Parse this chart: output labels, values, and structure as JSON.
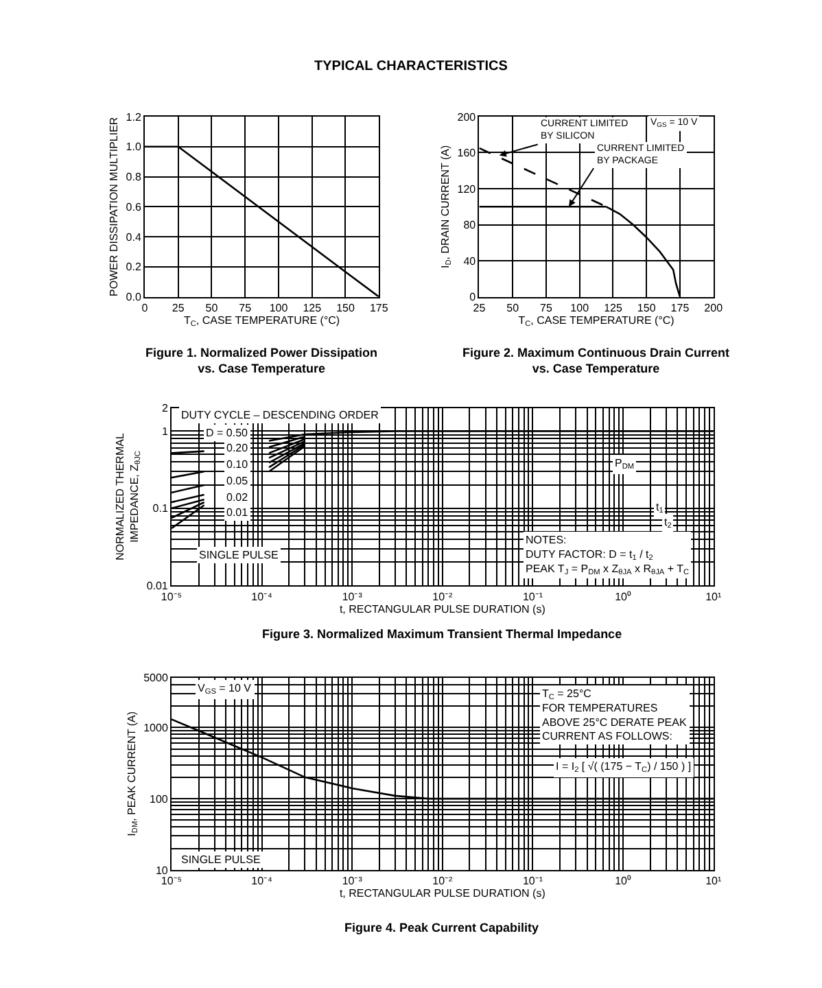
{
  "chart_data": [
    {
      "type": "line",
      "title": "Figure 1. Normalized Power Dissipation\nvs. Case Temperature",
      "xlabel": "T$_{C}$, CASE TEMPERATURE (°C)",
      "ylabel": "POWER DISSIPATION MULTIPLIER",
      "annotations": [
        "TYPICAL CHARACTERISTICS"
      ],
      "xlim": [
        0,
        175
      ],
      "ylim": [
        0,
        1.2
      ],
      "xticks": [
        0,
        25,
        50,
        75,
        100,
        125,
        150,
        175
      ],
      "yticks": [
        {
          "value": 0,
          "label": "0.0"
        },
        {
          "value": 0.2,
          "label": "0.2"
        },
        {
          "value": 0.4,
          "label": "0.4"
        },
        {
          "value": 0.6,
          "label": "0.6"
        },
        {
          "value": 0.8,
          "label": "0.8"
        },
        {
          "value": 1.0,
          "label": "1.0"
        },
        {
          "value": 1.2,
          "label": "1.2"
        }
      ],
      "grid": true,
      "line_style": "solid",
      "series": [
        {
          "color": "#000000",
          "x": [
            0,
            25,
            175
          ],
          "values": [
            1.0,
            1.0,
            0.0
          ]
        }
      ]
    },
    {
      "type": "line",
      "title": "Figure 2. Maximum Continuous Drain Current\nvs. Case Temperature",
      "xlabel": "T$_{C}$, CASE TEMPERATURE (°C)",
      "ylabel": "I$_{D}$, DRAIN CURRENT (A)",
      "annotations": [
        {
          "text": "CURRENT LIMITED\nBY SILICON",
          "x": 40,
          "y": 157
        },
        {
          "text": "CURRENT LIMITED\nBY PACKAGE",
          "x": 92,
          "y": 100
        },
        "V$_{GS}$ = 10 V"
      ],
      "xlim": [
        25,
        200
      ],
      "ylim": [
        0,
        200
      ],
      "xticks": [
        25,
        50,
        75,
        100,
        125,
        150,
        175,
        200
      ],
      "yticks": [
        0,
        40,
        80,
        120,
        160,
        200
      ],
      "grid": true,
      "series": [
        {
          "color": "#000000",
          "line_style": "dashed",
          "x": [
            25,
            120
          ],
          "values": [
            165,
            100
          ]
        },
        {
          "color": "#000000",
          "line_style": "solid",
          "x": [
            25,
            120
          ],
          "values": [
            100,
            100
          ]
        },
        {
          "color": "#000000",
          "line_style": "solid",
          "x": [
            120,
            130,
            140,
            150,
            160,
            170,
            172,
            175
          ],
          "values": [
            100,
            92,
            80,
            66,
            50,
            30,
            15,
            0
          ]
        }
      ]
    },
    {
      "type": "line",
      "title": "Figure 3. Normalized Maximum Transient Thermal Impedance",
      "xlabel": "t, RECTANGULAR PULSE DURATION (s)",
      "ylabel": "NORMALIZED THERMAL\nIMPEDANCE, Z$_{θJC}$",
      "annotations": [
        "DUTY CYCLE – DESCENDING ORDER",
        "D = 0.50",
        "0.20",
        "0.10",
        "0.05",
        "0.02",
        "0.01",
        "SINGLE PULSE",
        "NOTES:\nDUTY FACTOR: D = t$_{1}$ / t$_{2}$\nPEAK T$_{J}$ = P$_{DM}$ x Z$_{θJA}$ x R$_{θJA}$ + T$_{C}$",
        "P$_{DM}$",
        "t$_{1}$",
        "t$_{2}$"
      ],
      "log": "xy",
      "xlim": [
        1e-05,
        10
      ],
      "ylim": [
        0.01,
        2
      ],
      "xticks": [
        {
          "value": 1e-05,
          "label": "10⁻⁵"
        },
        {
          "value": 0.0001,
          "label": "10⁻⁴"
        },
        {
          "value": 0.001,
          "label": "10⁻³"
        },
        {
          "value": 0.01,
          "label": "10⁻²"
        },
        {
          "value": 0.1,
          "label": "10⁻¹"
        },
        {
          "value": 1,
          "label": "10⁰"
        },
        {
          "value": 10,
          "label": "10¹"
        }
      ],
      "yticks": [
        0.01,
        0.1,
        1,
        2
      ],
      "grid": true,
      "line_style": "solid",
      "series": [
        {
          "color": "#000000",
          "x": [
            1e-05,
            2.3e-05,
            5e-05,
            0.00012,
            0.0003,
            0.001,
            0.003,
            10
          ],
          "values": [
            0.52,
            0.55,
            null,
            0.75,
            0.91,
            0.97,
            1,
            1
          ]
        },
        {
          "color": "#000000",
          "x": [
            1e-05,
            2.3e-05,
            5e-05,
            0.00012,
            0.0003
          ],
          "values": [
            0.25,
            0.3,
            null,
            0.62,
            0.85
          ]
        },
        {
          "color": "#000000",
          "x": [
            1e-05,
            2.3e-05,
            5e-05,
            0.00012,
            0.0003
          ],
          "values": [
            0.16,
            0.2,
            null,
            0.52,
            0.79
          ]
        },
        {
          "color": "#000000",
          "x": [
            1e-05,
            2.3e-05,
            5e-05,
            0.00012,
            0.0003
          ],
          "values": [
            0.12,
            0.15,
            null,
            0.45,
            0.74
          ]
        },
        {
          "color": "#000000",
          "x": [
            1e-05,
            2.3e-05,
            5e-05,
            0.00012,
            0.0003
          ],
          "values": [
            0.1,
            0.13,
            null,
            0.39,
            0.7
          ]
        },
        {
          "color": "#000000",
          "x": [
            1e-05,
            2.3e-05,
            5e-05,
            0.00012,
            0.0003
          ],
          "values": [
            0.075,
            0.12,
            null,
            0.34,
            0.67
          ]
        },
        {
          "color": "#000000",
          "x": [
            1e-05,
            2.3e-05,
            5e-05,
            0.00012,
            0.0003
          ],
          "values": [
            0.055,
            0.11,
            null,
            0.3,
            0.64
          ]
        }
      ]
    },
    {
      "type": "line",
      "title": "Figure 4. Peak Current Capability",
      "xlabel": "t, RECTANGULAR PULSE DURATION (s)",
      "ylabel": "I$_{DM}$, PEAK CURRENT (A)",
      "annotations": [
        "V$_{GS}$ = 10 V",
        "SINGLE PULSE",
        "T$_{C}$ = 25°C\nFOR TEMPERATURES\nABOVE 25°C DERATE PEAK\nCURRENT AS FOLLOWS:",
        "I = I$_{2}$ [ √( (175 − T$_{C}$) / 150 ) ]"
      ],
      "log": "xy",
      "xlim": [
        1e-05,
        10
      ],
      "ylim": [
        10,
        5000
      ],
      "xticks": [
        {
          "value": 1e-05,
          "label": "10⁻⁵"
        },
        {
          "value": 0.0001,
          "label": "10⁻⁴"
        },
        {
          "value": 0.001,
          "label": "10⁻³"
        },
        {
          "value": 0.01,
          "label": "10⁻²"
        },
        {
          "value": 0.1,
          "label": "10⁻¹"
        },
        {
          "value": 1,
          "label": "10⁰"
        },
        {
          "value": 10,
          "label": "10¹"
        }
      ],
      "yticks": [
        10,
        100,
        1000,
        5000
      ],
      "grid": true,
      "line_style": "solid",
      "series": [
        {
          "color": "#000000",
          "x": [
            1e-05,
            2e-05,
            5e-05,
            0.0001,
            0.0003,
            0.001,
            0.003,
            0.007,
            10
          ],
          "values": [
            1300,
            900,
            550,
            380,
            200,
            140,
            110,
            100,
            100
          ]
        }
      ]
    }
  ]
}
